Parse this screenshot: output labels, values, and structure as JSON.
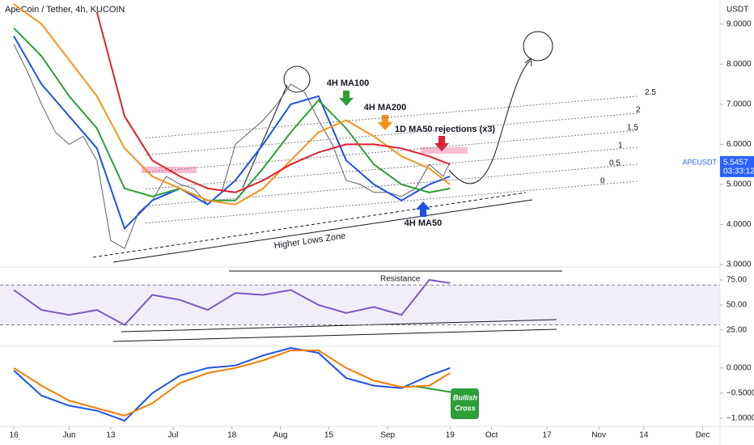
{
  "header": {
    "title": "ApeCoin / Tether, 4h, KUCOIN",
    "currency": "USDT",
    "symbol": "APEUSDT",
    "last_price": 5.5457,
    "countdown": "03:33:12"
  },
  "chart_data": [
    {
      "type": "line",
      "xlim": [
        -4,
        204
      ],
      "ylim": [
        2.94,
        9.6
      ],
      "yticks": [
        {
          "value": 3,
          "label": "3.0000"
        },
        {
          "value": 4,
          "label": "4.0000"
        },
        {
          "value": 5,
          "label": "5.0000"
        },
        {
          "value": 6,
          "label": "6.0000"
        },
        {
          "value": 7,
          "label": "7.0000"
        },
        {
          "value": 8,
          "label": "8.0000"
        },
        {
          "value": 9,
          "label": "9.0000"
        }
      ],
      "fib_levels": [
        0,
        0.5,
        1,
        1.5,
        2,
        2.5
      ],
      "series": [
        {
          "color": "#5d606b",
          "x": [
            0,
            4,
            8,
            12,
            16,
            20,
            24,
            28,
            32,
            36,
            40,
            44,
            48,
            52,
            56,
            60,
            64,
            68,
            72,
            76,
            80,
            84,
            88,
            92,
            96,
            100,
            104,
            108,
            112,
            116,
            120,
            124,
            126
          ],
          "values": [
            8.5,
            7.8,
            7.0,
            6.3,
            6.0,
            6.2,
            5.6,
            3.6,
            3.4,
            4.3,
            4.6,
            5.2,
            5.0,
            4.9,
            4.5,
            4.8,
            6.0,
            6.3,
            6.6,
            7.0,
            7.5,
            7.3,
            6.6,
            6.0,
            5.1,
            5.0,
            4.8,
            4.8,
            4.7,
            4.9,
            5.5,
            5.2,
            5.55
          ]
        },
        {
          "name": "4H MA50",
          "color": "#1e53e5",
          "x": [
            0,
            8,
            16,
            24,
            32,
            40,
            48,
            56,
            64,
            72,
            80,
            88,
            96,
            104,
            112,
            120,
            126
          ],
          "values": [
            8.7,
            7.5,
            6.7,
            5.9,
            3.9,
            4.6,
            4.9,
            4.5,
            5.1,
            6.0,
            7.0,
            7.2,
            5.6,
            5.0,
            4.6,
            5.0,
            5.2
          ]
        },
        {
          "name": "4H MA100",
          "color": "#2e9e3a",
          "x": [
            0,
            8,
            16,
            24,
            32,
            40,
            48,
            56,
            64,
            72,
            80,
            88,
            96,
            104,
            112,
            120,
            126
          ],
          "values": [
            8.9,
            8.2,
            7.2,
            6.4,
            4.9,
            4.7,
            4.9,
            4.6,
            4.6,
            5.4,
            6.3,
            7.1,
            6.4,
            5.5,
            5.0,
            4.8,
            4.9
          ]
        },
        {
          "name": "4H MA200",
          "color": "#f7931a",
          "x": [
            0,
            8,
            16,
            24,
            32,
            40,
            48,
            56,
            64,
            72,
            80,
            88,
            96,
            104,
            112,
            120,
            126
          ],
          "values": [
            9.5,
            9.0,
            8.1,
            7.2,
            5.9,
            5.2,
            4.9,
            4.6,
            4.5,
            4.9,
            5.6,
            6.3,
            6.6,
            6.2,
            5.7,
            5.4,
            5.0
          ]
        },
        {
          "color": "#e0202e",
          "x": [
            0,
            8,
            16,
            24,
            32,
            40,
            48,
            56,
            64,
            72,
            80,
            88,
            96,
            104,
            112,
            120,
            126
          ],
          "values": [
            null,
            null,
            null,
            9.3,
            6.7,
            5.6,
            5.2,
            4.9,
            4.8,
            5.1,
            5.5,
            5.8,
            6.0,
            6.0,
            5.9,
            5.7,
            5.5
          ]
        }
      ]
    },
    {
      "type": "line",
      "xlim": [
        -4,
        204
      ],
      "ylim": [
        11,
        88
      ],
      "bands": [
        30,
        70
      ],
      "yticks": [
        {
          "value": 75,
          "label": "75.00"
        },
        {
          "value": 50,
          "label": "50.00"
        },
        {
          "value": 25,
          "label": "25.00"
        }
      ],
      "series": [
        {
          "color": "#7e57c2",
          "x": [
            0,
            8,
            16,
            24,
            32,
            40,
            48,
            56,
            64,
            72,
            80,
            88,
            96,
            104,
            112,
            120,
            126
          ],
          "values": [
            65,
            45,
            40,
            45,
            30,
            60,
            55,
            45,
            62,
            60,
            65,
            50,
            42,
            48,
            40,
            75,
            72
          ]
        }
      ]
    },
    {
      "type": "line",
      "xlim": [
        -4,
        204
      ],
      "ylim": [
        -1.13,
        0.4
      ],
      "yticks": [
        {
          "value": 0,
          "label": "0.0000"
        },
        {
          "value": -0.5,
          "label": "−0.5000"
        },
        {
          "value": -1,
          "label": "−1.0000"
        }
      ],
      "xticks": [
        {
          "value": 0,
          "label": "16"
        },
        {
          "value": 16,
          "label": "Jun"
        },
        {
          "value": 28,
          "label": "13"
        },
        {
          "value": 46,
          "label": "Jul"
        },
        {
          "value": 63,
          "label": "18"
        },
        {
          "value": 77,
          "label": "Aug"
        },
        {
          "value": 91,
          "label": "15"
        },
        {
          "value": 108,
          "label": "Sep"
        },
        {
          "value": 126,
          "label": "19"
        },
        {
          "value": 138,
          "label": "Oct"
        },
        {
          "value": 154,
          "label": "17"
        },
        {
          "value": 169,
          "label": "Nov"
        },
        {
          "value": 182,
          "label": "14"
        },
        {
          "value": 199,
          "label": "Dec"
        }
      ],
      "series": [
        {
          "color": "#1e53e5",
          "x": [
            0,
            8,
            16,
            24,
            32,
            40,
            48,
            56,
            64,
            72,
            80,
            88,
            96,
            104,
            112,
            120,
            126
          ],
          "values": [
            -0.05,
            -0.55,
            -0.75,
            -0.85,
            -1.05,
            -0.5,
            -0.15,
            0.0,
            0.05,
            0.25,
            0.4,
            0.3,
            -0.2,
            -0.35,
            -0.4,
            -0.15,
            0.0
          ]
        },
        {
          "color": "#f57c00",
          "x": [
            0,
            8,
            16,
            24,
            32,
            40,
            48,
            56,
            64,
            72,
            80,
            88,
            96,
            104,
            112,
            120,
            126
          ],
          "values": [
            0.0,
            -0.35,
            -0.65,
            -0.8,
            -0.95,
            -0.7,
            -0.3,
            -0.1,
            0.0,
            0.15,
            0.35,
            0.35,
            0.0,
            -0.25,
            -0.38,
            -0.35,
            -0.1
          ]
        }
      ]
    }
  ],
  "annotations": {
    "higher_lows": "Higher Lows Zone",
    "rejections": "1D MA50 rejections (x3)",
    "resistance": "Resistance",
    "bullish_cross": [
      "Bullish",
      "Cross"
    ]
  }
}
